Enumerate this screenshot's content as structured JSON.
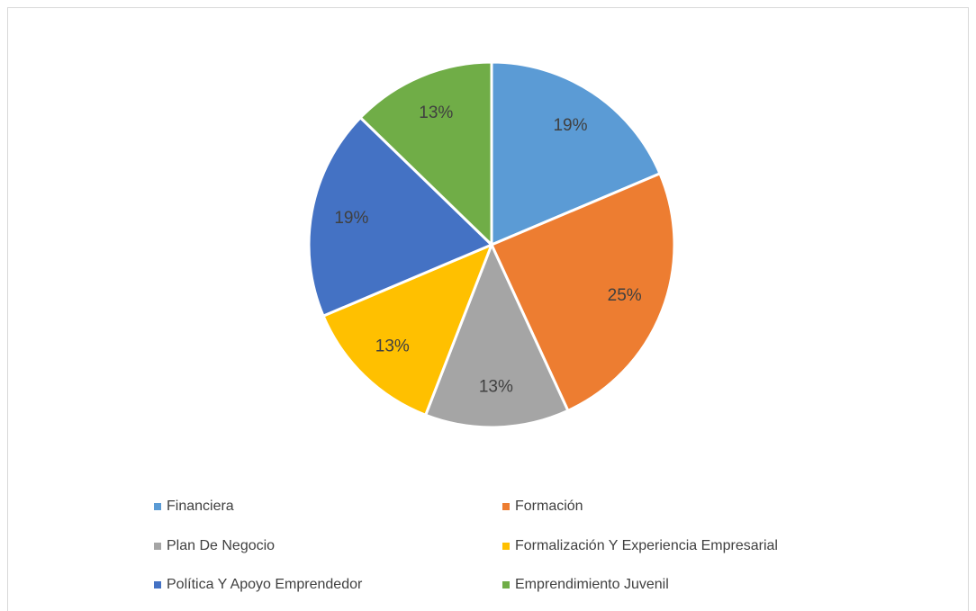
{
  "chart_data": {
    "type": "pie",
    "categories": [
      "Financiera",
      "Formación",
      "Plan De Negocio",
      "Formalización Y Experiencia Empresarial",
      "Política Y Apoyo Emprendedor",
      "Emprendimiento Juvenil"
    ],
    "values": [
      19,
      25,
      13,
      13,
      19,
      13
    ],
    "value_labels": [
      "19%",
      "25%",
      "13%",
      "13%",
      "19%",
      "13%"
    ],
    "colors": [
      "#5b9bd5",
      "#ed7d31",
      "#a5a5a5",
      "#ffc000",
      "#4472c4",
      "#70ad47"
    ]
  }
}
